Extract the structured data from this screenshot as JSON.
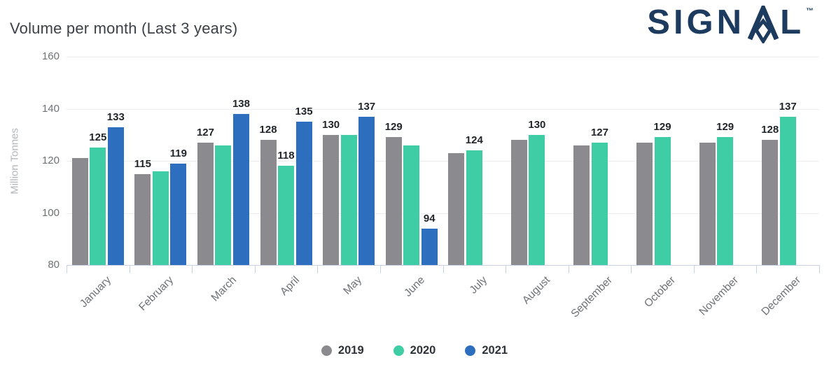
{
  "header": {
    "title": "Volume per month (Last 3 years)",
    "logo": {
      "text": "SIGNAL",
      "text_before_a": "SIGN",
      "text_after_a": "L",
      "trademark": "™",
      "color": "#1c3b5e"
    }
  },
  "chart_data": {
    "type": "bar",
    "title": "Volume per month (Last 3 years)",
    "xlabel": "",
    "ylabel": "Million Tonnes",
    "ylim": [
      80,
      160
    ],
    "yticks": [
      80,
      100,
      120,
      140,
      160
    ],
    "grid": "horizontal",
    "legend_position": "bottom-center",
    "categories": [
      "January",
      "February",
      "March",
      "April",
      "May",
      "June",
      "July",
      "August",
      "September",
      "October",
      "November",
      "December"
    ],
    "series": [
      {
        "name": "2019",
        "color": "#8b8b8f",
        "values": [
          121,
          115,
          127,
          128,
          130,
          129,
          123,
          128,
          126,
          127,
          127,
          128
        ],
        "shown_labels": [
          "",
          "115",
          "127",
          "128",
          "130",
          "129",
          "",
          "",
          "",
          "",
          "",
          "128"
        ]
      },
      {
        "name": "2020",
        "color": "#3ecda4",
        "values": [
          125,
          116,
          126,
          118,
          130,
          126,
          124,
          130,
          127,
          129,
          129,
          137
        ],
        "shown_labels": [
          "125",
          "",
          "",
          "118",
          "",
          "",
          "124",
          "130",
          "127",
          "129",
          "129",
          "137"
        ]
      },
      {
        "name": "2021",
        "color": "#2d6ebf",
        "values": [
          133,
          119,
          138,
          135,
          137,
          94,
          null,
          null,
          null,
          null,
          null,
          null
        ],
        "shown_labels": [
          "133",
          "119",
          "138",
          "135",
          "137",
          "94",
          "",
          "",
          "",
          "",
          "",
          ""
        ]
      }
    ]
  }
}
